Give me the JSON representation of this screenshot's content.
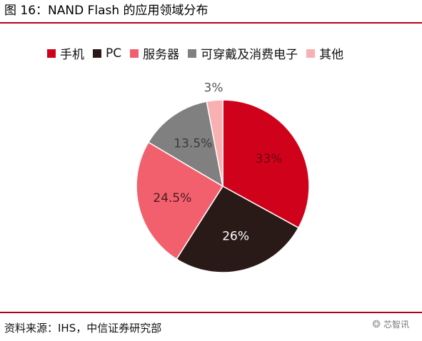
{
  "title": "图 16：NAND Flash 的应用领域分布",
  "source": "资料来源：IHS，中信证券研究部",
  "watermark": {
    "icon": "wechat-icon",
    "text": "芯智讯"
  },
  "chart_data": {
    "type": "pie",
    "title": "",
    "legend_position": "top",
    "start": "12 o'clock, clockwise",
    "slices": [
      {
        "label": "手机",
        "value": 33,
        "value_label": "33%",
        "color": "#d0021b"
      },
      {
        "label": "PC",
        "value": 26,
        "value_label": "26%",
        "color": "#2a1a17"
      },
      {
        "label": "服务器",
        "value": 24.5,
        "value_label": "24.5%",
        "color": "#f2606e"
      },
      {
        "label": "可穿戴及消费电子",
        "value": 13.5,
        "value_label": "13.5%",
        "color": "#808080"
      },
      {
        "label": "其他",
        "value": 3,
        "value_label": "3%",
        "color": "#f8b0b2"
      }
    ]
  }
}
